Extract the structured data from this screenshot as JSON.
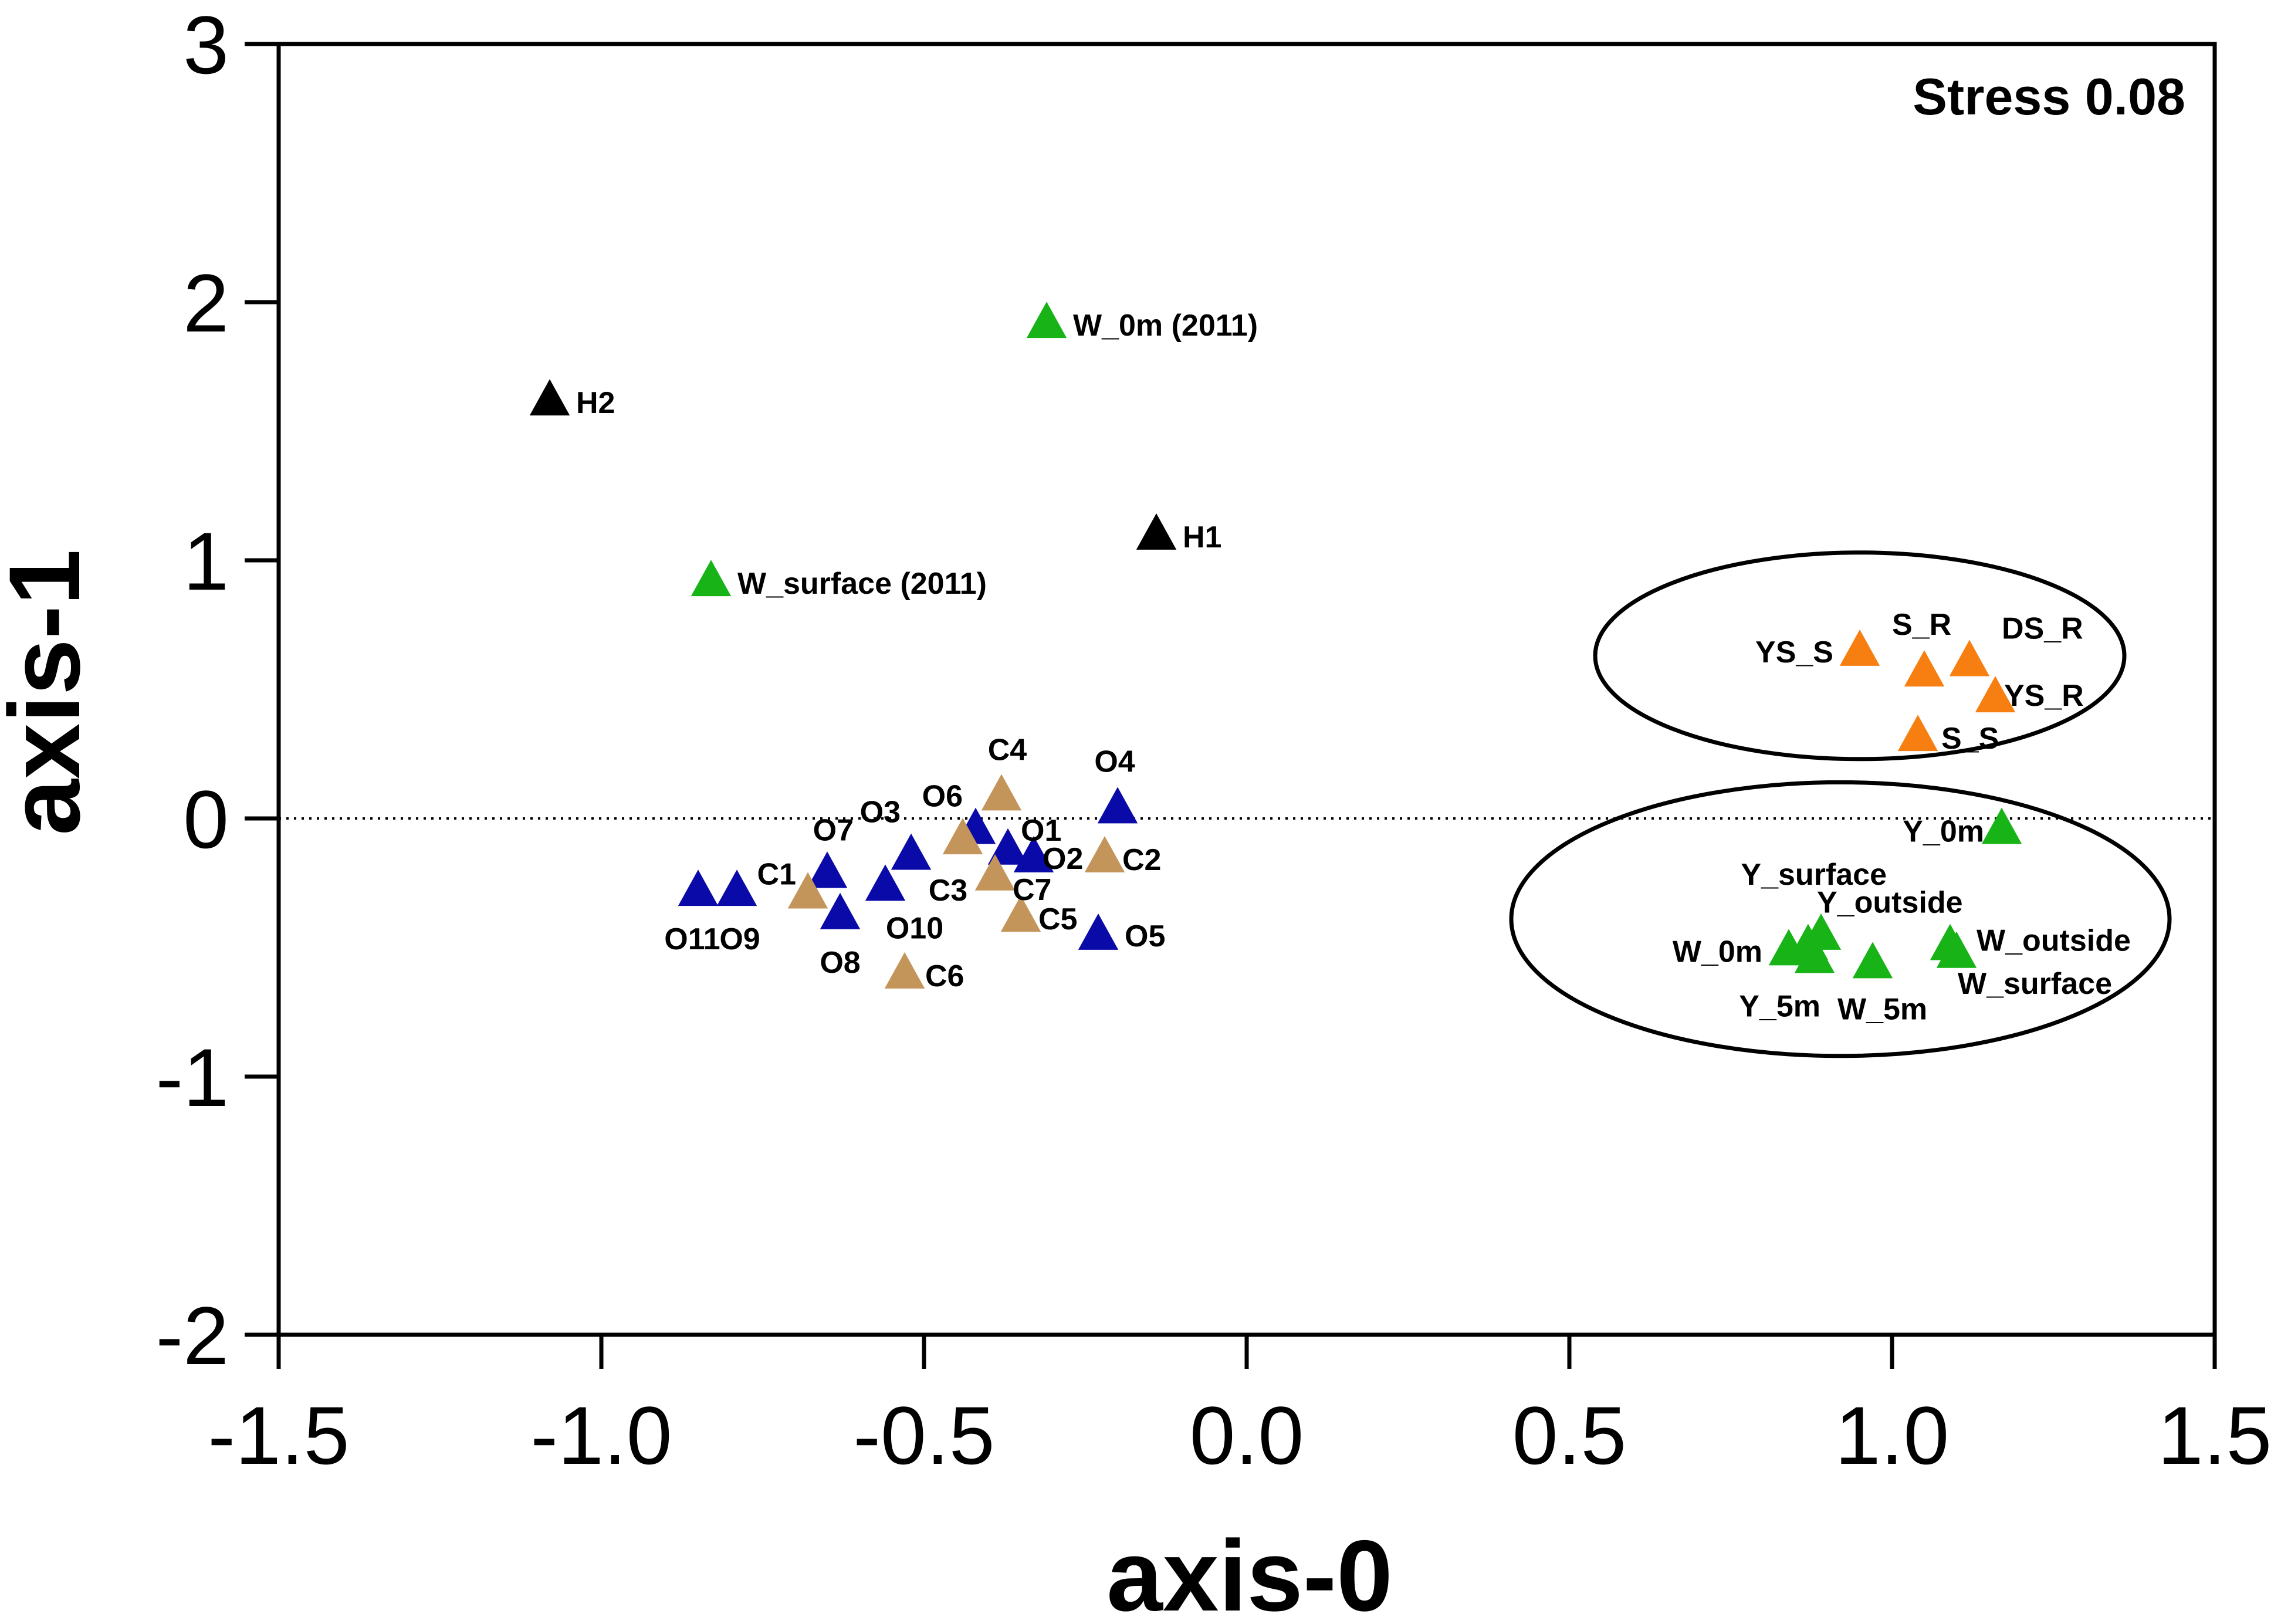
{
  "chart_data": {
    "type": "scatter",
    "title": "",
    "xlabel": "axis-0",
    "ylabel": "axis-1",
    "xlim": [
      -1.5,
      1.5
    ],
    "ylim": [
      -2,
      3
    ],
    "x_ticks": [
      "-1.5",
      "-1.0",
      "-0.5",
      "0.0",
      "0.5",
      "1.0",
      "1.5"
    ],
    "x_tick_values": [
      -1.5,
      -1.0,
      -0.5,
      0.0,
      0.5,
      1.0,
      1.5
    ],
    "y_ticks": [
      "-2",
      "-1",
      "0",
      "1",
      "2",
      "3"
    ],
    "y_tick_values": [
      -2,
      -1,
      0,
      1,
      2,
      3
    ],
    "annotation": "Stress 0.08",
    "reference_line_y": 0,
    "colors": {
      "black": "#000000",
      "green": "#17b317",
      "blue": "#0a0aa8",
      "tan": "#c4955a",
      "orange": "#f77f12"
    },
    "ellipses": [
      {
        "cx": 0.95,
        "cy": 0.63,
        "rx": 0.41,
        "ry": 0.4
      },
      {
        "cx": 0.92,
        "cy": -0.39,
        "rx": 0.51,
        "ry": 0.53
      }
    ],
    "series": [
      {
        "name": "Black",
        "color": "#000000",
        "points": [
          {
            "label": "H2",
            "x": -1.08,
            "y": 1.62
          },
          {
            "label": "H1",
            "x": -0.14,
            "y": 1.1
          }
        ]
      },
      {
        "name": "Green",
        "color": "#17b317",
        "points": [
          {
            "label": "W_0m (2011)",
            "x": -0.31,
            "y": 1.92
          },
          {
            "label": "W_surface (2011)",
            "x": -0.83,
            "y": 0.92
          },
          {
            "label": "Y_0m",
            "x": 1.17,
            "y": -0.04
          },
          {
            "label": "Y_surface",
            "x": 0.89,
            "y": -0.45
          },
          {
            "label": "Y_outside",
            "x": 0.87,
            "y": -0.49
          },
          {
            "label": "W_0m",
            "x": 0.84,
            "y": -0.51
          },
          {
            "label": "Y_5m",
            "x": 0.88,
            "y": -0.54
          },
          {
            "label": "W_5m",
            "x": 0.97,
            "y": -0.56
          },
          {
            "label": "W_outside",
            "x": 1.09,
            "y": -0.49
          },
          {
            "label": "W_surface",
            "x": 1.1,
            "y": -0.52
          }
        ]
      },
      {
        "name": "Blue",
        "color": "#0a0aa8",
        "points": [
          {
            "label": "O4",
            "x": -0.2,
            "y": 0.04
          },
          {
            "label": "O6",
            "x": -0.42,
            "y": -0.04
          },
          {
            "label": "O1",
            "x": -0.37,
            "y": -0.12
          },
          {
            "label": "O2",
            "x": -0.33,
            "y": -0.15
          },
          {
            "label": "O3",
            "x": -0.52,
            "y": -0.14
          },
          {
            "label": "O7",
            "x": -0.65,
            "y": -0.21
          },
          {
            "label": "O10",
            "x": -0.56,
            "y": -0.26
          },
          {
            "label": "O8",
            "x": -0.63,
            "y": -0.37
          },
          {
            "label": "O11",
            "x": -0.85,
            "y": -0.28
          },
          {
            "label": "O9",
            "x": -0.79,
            "y": -0.28
          },
          {
            "label": "O5",
            "x": -0.23,
            "y": -0.45
          }
        ]
      },
      {
        "name": "Tan",
        "color": "#c4955a",
        "points": [
          {
            "label": "C4",
            "x": -0.38,
            "y": 0.09
          },
          {
            "label": "C1",
            "x": -0.68,
            "y": -0.29
          },
          {
            "label": "C3",
            "x": -0.44,
            "y": -0.08
          },
          {
            "label": "C7",
            "x": -0.39,
            "y": -0.22
          },
          {
            "label": "C2",
            "x": -0.22,
            "y": -0.15
          },
          {
            "label": "C5",
            "x": -0.35,
            "y": -0.38
          },
          {
            "label": "C6",
            "x": -0.53,
            "y": -0.6
          }
        ]
      },
      {
        "name": "Orange",
        "color": "#f77f12",
        "points": [
          {
            "label": "YS_S",
            "x": 0.95,
            "y": 0.65
          },
          {
            "label": "S_R",
            "x": 1.05,
            "y": 0.57
          },
          {
            "label": "DS_R",
            "x": 1.12,
            "y": 0.61
          },
          {
            "label": "YS_R",
            "x": 1.16,
            "y": 0.47
          },
          {
            "label": "S_S",
            "x": 1.04,
            "y": 0.32
          }
        ]
      }
    ]
  }
}
